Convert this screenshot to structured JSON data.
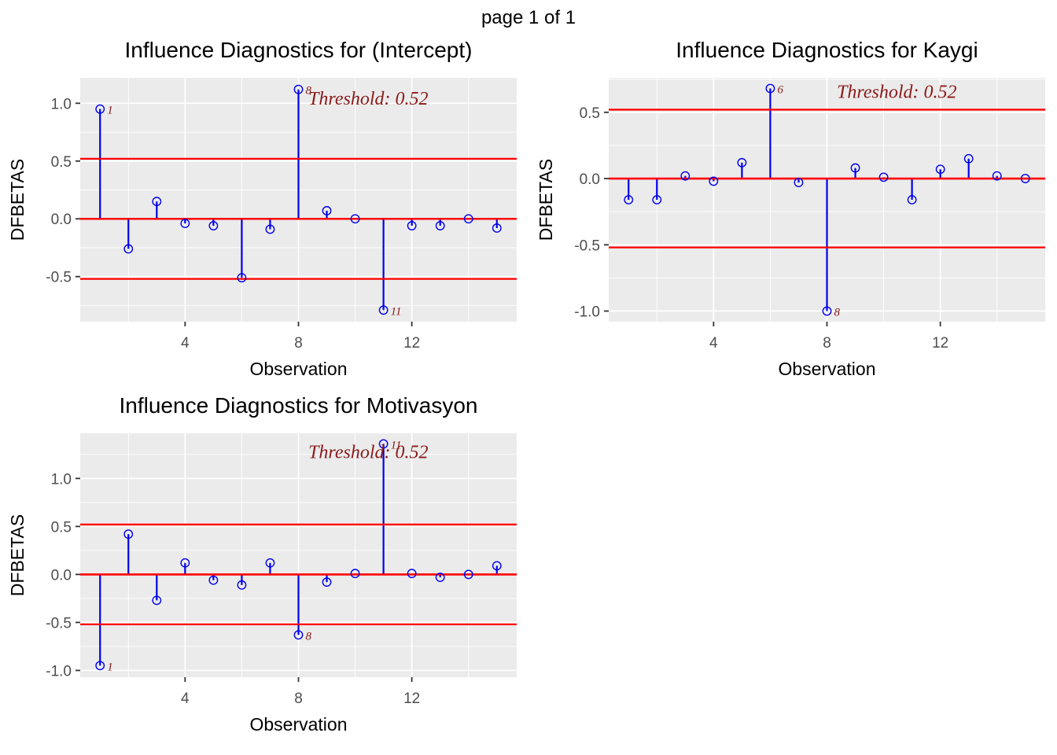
{
  "page": {
    "title": "page 1 of 1"
  },
  "styles": {
    "stem_color": "#0000EE",
    "ref_line_color": "#FF0000",
    "annotation_color": "#8B1A1A",
    "panel_bg": "#EBEBEB",
    "grid_color": "#FFFFFF",
    "tick_text_color": "#4D4D4D",
    "tick_mark_color": "#333333"
  },
  "chart_data": {
    "type": "stem",
    "threshold": 0.52,
    "xlabel": "Observation",
    "ylabel": "DFBETAS",
    "x": [
      1,
      2,
      3,
      4,
      5,
      6,
      7,
      8,
      9,
      10,
      11,
      12,
      13,
      14,
      15
    ],
    "xlim": [
      0.3,
      15.7
    ],
    "xticks": [
      {
        "value": 4,
        "label": "4"
      },
      {
        "value": 8,
        "label": "8"
      },
      {
        "value": 12,
        "label": "12"
      }
    ],
    "x_minor_gridlines": [
      2,
      6,
      10,
      14
    ],
    "grid": true,
    "legend": "none",
    "panels": [
      {
        "key": "intercept",
        "title": "Influence Diagnostics for (Intercept)",
        "threshold_label": "Threshold: 0.52",
        "values": [
          0.95,
          -0.26,
          0.15,
          -0.04,
          -0.06,
          -0.51,
          -0.09,
          1.12,
          0.07,
          0.0,
          -0.79,
          -0.06,
          -0.06,
          0.0,
          -0.08
        ],
        "labeled_points": [
          {
            "obs": 1,
            "label": "1"
          },
          {
            "obs": 8,
            "label": "8"
          },
          {
            "obs": 11,
            "label": "11"
          }
        ],
        "ylim": [
          -0.89,
          1.22
        ],
        "yticks": [
          {
            "value": -0.5,
            "label": "-0.5"
          },
          {
            "value": 0.0,
            "label": "0.0"
          },
          {
            "value": 0.5,
            "label": "0.5"
          },
          {
            "value": 1.0,
            "label": "1.0"
          }
        ],
        "annotation": {
          "x_frac": 0.66,
          "y_value": 0.99
        }
      },
      {
        "key": "kaygi",
        "title": "Influence Diagnostics for Kaygi",
        "threshold_label": "Threshold: 0.52",
        "values": [
          -0.16,
          -0.16,
          0.02,
          -0.02,
          0.12,
          0.68,
          -0.03,
          -1.0,
          0.08,
          0.01,
          -0.16,
          0.07,
          0.15,
          0.02,
          0.0
        ],
        "labeled_points": [
          {
            "obs": 6,
            "label": "6"
          },
          {
            "obs": 8,
            "label": "8"
          }
        ],
        "ylim": [
          -1.08,
          0.76
        ],
        "yticks": [
          {
            "value": -1.0,
            "label": "-1.0"
          },
          {
            "value": -0.5,
            "label": "-0.5"
          },
          {
            "value": 0.0,
            "label": "0.0"
          },
          {
            "value": 0.5,
            "label": "0.5"
          }
        ],
        "annotation": {
          "x_frac": 0.66,
          "y_value": 0.61
        }
      },
      {
        "key": "motivasyon",
        "title": "Influence Diagnostics for Motivasyon",
        "threshold_label": "Threshold: 0.52",
        "values": [
          -0.95,
          0.42,
          -0.27,
          0.12,
          -0.06,
          -0.11,
          0.12,
          -0.63,
          -0.08,
          0.01,
          1.36,
          0.01,
          -0.03,
          0.0,
          0.09
        ],
        "labeled_points": [
          {
            "obs": 1,
            "label": "1"
          },
          {
            "obs": 8,
            "label": "8"
          },
          {
            "obs": 11,
            "label": "11"
          }
        ],
        "ylim": [
          -1.07,
          1.47
        ],
        "yticks": [
          {
            "value": -1.0,
            "label": "-1.0"
          },
          {
            "value": -0.5,
            "label": "-0.5"
          },
          {
            "value": 0.0,
            "label": "0.0"
          },
          {
            "value": 0.5,
            "label": "0.5"
          },
          {
            "value": 1.0,
            "label": "1.0"
          }
        ],
        "annotation": {
          "x_frac": 0.66,
          "y_value": 1.21
        }
      }
    ]
  }
}
